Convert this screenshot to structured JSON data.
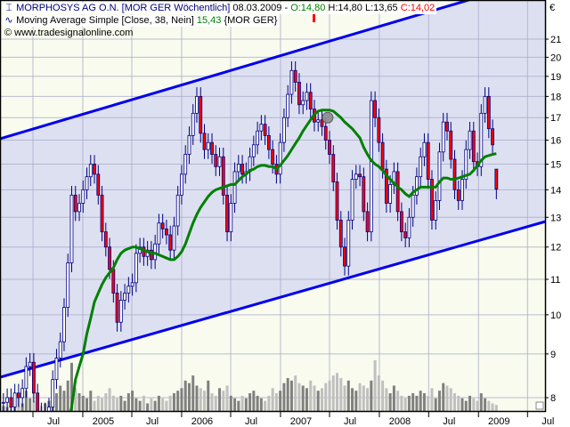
{
  "header": {
    "instrument": "MORPHOSYS AG O.N. [MOR GER  Wöchentlich]",
    "date": "08.03.2009 -",
    "open": "O:14,80",
    "high_low": "H:14,80 L:13,65",
    "close": "C:14,02",
    "indicator": "Moving Average Simple [Close, 38, Nein]",
    "indicator_value": "15,43",
    "indicator_symbol": "{MOR GER}",
    "copyright": "© www.tradesignalonline.com",
    "last_bar": {
      "o": 14.8,
      "h": 14.8,
      "l": 13.65,
      "c": 14.02
    }
  },
  "icons": {
    "instrument": "candlestick-icon",
    "indicator": "wave-icon"
  },
  "colors": {
    "channel_fill": "#dde0f1",
    "outside_fill": "#f8fbee",
    "channel_line": "#0000ee",
    "ma_line": "#008000",
    "candle_up": "#ffffff",
    "candle_down": "#ff0000",
    "candle_outline": "#000080",
    "volume_dark": "#808080",
    "volume_light": "#c0c0c0"
  },
  "chart_data": {
    "type": "candlestick",
    "title": "MORPHOSYS AG O.N. [MOR GER  Wöchentlich]",
    "currency": "€",
    "y_scale": "log",
    "ylim": [
      7.72,
      23.3
    ],
    "y_ticks": [
      "8",
      "9",
      "10",
      "11",
      "12",
      "13",
      "14",
      "15",
      "16",
      "17",
      "18",
      "19",
      "20",
      "21"
    ],
    "x_ticks": [
      {
        "date": "2004-07-01",
        "label": "Jul"
      },
      {
        "date": "2005-01-01",
        "label": "2005"
      },
      {
        "date": "2005-07-01",
        "label": "Jul"
      },
      {
        "date": "2006-01-01",
        "label": "2006"
      },
      {
        "date": "2006-07-01",
        "label": "Jul"
      },
      {
        "date": "2007-01-01",
        "label": "2007"
      },
      {
        "date": "2007-07-01",
        "label": "Jul"
      },
      {
        "date": "2008-01-01",
        "label": "2008"
      },
      {
        "date": "2008-07-01",
        "label": "Jul"
      },
      {
        "date": "2009-01-01",
        "label": "2009"
      },
      {
        "date": "2009-07-01",
        "label": "Jul"
      }
    ],
    "xlim": [
      "2004-03-01",
      "2009-09-04"
    ],
    "grid": true,
    "period": {
      "first": "2004-03-14",
      "last": "2009-03-08",
      "bar_interval_days": 14
    },
    "close": [
      7.9,
      8.0,
      7.8,
      8.1,
      8.0,
      8.2,
      8.7,
      8.8,
      8.1,
      7.7,
      7.6,
      7.7,
      7.8,
      8.4,
      8.9,
      9.3,
      10.2,
      11.5,
      13.8,
      13.2,
      13.5,
      14.0,
      14.5,
      15.0,
      14.6,
      13.8,
      12.5,
      12.0,
      11.3,
      10.6,
      9.8,
      10.4,
      10.6,
      10.8,
      10.9,
      11.8,
      12.0,
      11.7,
      11.9,
      11.6,
      12.1,
      12.8,
      12.6,
      12.4,
      11.9,
      12.7,
      13.8,
      14.6,
      15.4,
      16.2,
      17.2,
      18.0,
      16.3,
      15.6,
      15.9,
      15.4,
      14.9,
      15.3,
      13.8,
      12.5,
      13.5,
      14.7,
      15.0,
      14.6,
      14.7,
      15.3,
      15.8,
      16.4,
      16.7,
      16.2,
      15.6,
      15.0,
      14.6,
      15.9,
      17.0,
      18.1,
      19.3,
      18.7,
      17.6,
      17.8,
      18.2,
      17.4,
      16.8,
      16.9,
      16.6,
      16.0,
      15.4,
      14.3,
      12.9,
      12.0,
      11.4,
      12.9,
      14.4,
      14.6,
      14.5,
      13.2,
      12.5,
      17.8,
      17.0,
      15.9,
      14.8,
      13.5,
      14.2,
      14.7,
      13.2,
      12.5,
      12.3,
      13.0,
      13.8,
      14.5,
      15.3,
      15.9,
      14.4,
      12.9,
      13.6,
      15.5,
      16.8,
      16.4,
      15.2,
      14.0,
      13.6,
      14.4,
      15.6,
      16.4,
      15.1,
      14.9,
      17.2,
      18.0,
      16.5,
      15.8,
      14.02
    ],
    "moving_average_38": [
      null,
      null,
      null,
      null,
      null,
      null,
      null,
      null,
      null,
      null,
      null,
      null,
      null,
      null,
      null,
      null,
      null,
      7.4,
      7.8,
      8.4,
      8.7,
      9.0,
      9.5,
      9.9,
      10.35,
      10.6,
      10.85,
      11.05,
      11.2,
      11.35,
      11.6,
      11.8,
      11.9,
      11.95,
      12.0,
      12.0,
      11.95,
      11.9,
      11.85,
      11.8,
      11.8,
      11.75,
      11.7,
      11.65,
      11.6,
      11.6,
      11.7,
      11.85,
      12.1,
      12.45,
      12.8,
      13.1,
      13.35,
      13.55,
      13.75,
      13.9,
      14.0,
      14.05,
      14.1,
      14.15,
      14.2,
      14.2,
      14.35,
      14.5,
      14.6,
      14.75,
      14.8,
      14.9,
      14.95,
      14.95,
      14.9,
      14.9,
      14.8,
      14.95,
      15.15,
      15.35,
      15.6,
      15.85,
      16.1,
      16.4,
      16.65,
      16.9,
      17.15,
      17.3,
      17.35,
      17.35,
      17.35,
      17.3,
      17.15,
      17.0,
      16.8,
      16.65,
      16.5,
      16.3,
      16.1,
      15.7,
      15.4,
      15.15,
      15.0,
      14.9,
      14.75,
      14.55,
      14.4,
      14.25,
      14.1,
      14.0,
      13.85,
      13.75,
      13.9,
      14.0,
      14.1,
      14.1,
      14.1,
      14.1,
      14.1,
      14.3,
      14.45,
      14.45,
      14.4,
      14.4,
      14.45,
      14.5,
      14.55,
      14.6,
      14.75,
      14.95,
      15.15,
      15.3,
      15.35,
      15.4,
      15.43
    ],
    "volume_relative": [
      10,
      8,
      12,
      9,
      30,
      15,
      40,
      25,
      20,
      12,
      10,
      15,
      20,
      25,
      35,
      50,
      40,
      60,
      95,
      45,
      35,
      30,
      25,
      40,
      20,
      30,
      25,
      35,
      45,
      30,
      25,
      30,
      20,
      35,
      40,
      25,
      20,
      30,
      15,
      25,
      20,
      30,
      25,
      20,
      30,
      35,
      40,
      45,
      60,
      55,
      70,
      50,
      45,
      40,
      60,
      35,
      30,
      45,
      40,
      50,
      30,
      25,
      20,
      30,
      25,
      35,
      40,
      30,
      25,
      20,
      30,
      45,
      35,
      40,
      55,
      65,
      60,
      70,
      55,
      50,
      45,
      60,
      50,
      40,
      45,
      55,
      60,
      70,
      75,
      65,
      50,
      60,
      45,
      40,
      55,
      50,
      45,
      60,
      100,
      70,
      60,
      45,
      35,
      50,
      40,
      30,
      25,
      30,
      35,
      30,
      40,
      35,
      30,
      45,
      25,
      40,
      55,
      50,
      45,
      35,
      30,
      25,
      20,
      30,
      25,
      20,
      35,
      25,
      20,
      15,
      12
    ],
    "trend_channel": {
      "upper": [
        [
          "2004-03-01",
          16.06
        ],
        [
          "2009-09-04",
          24.8
        ]
      ],
      "lower": [
        [
          "2004-03-01",
          8.45
        ],
        [
          "2009-09-04",
          12.85
        ]
      ]
    },
    "marker": {
      "date": "2007-06-24",
      "price": 17.0
    }
  }
}
